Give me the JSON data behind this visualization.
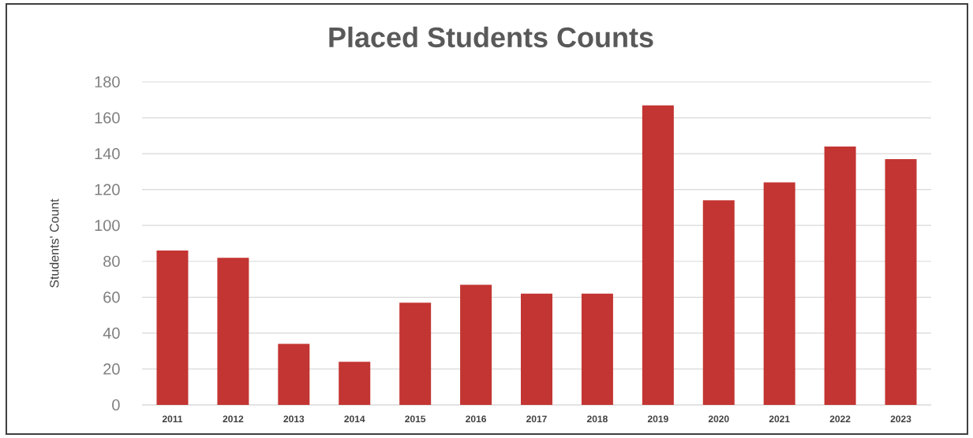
{
  "chart_data": {
    "type": "bar",
    "title": "Placed Students Counts",
    "ylabel": "Students' Count",
    "categories": [
      "2011",
      "2012",
      "2013",
      "2014",
      "2015",
      "2016",
      "2017",
      "2018",
      "2019",
      "2020",
      "2021",
      "2022",
      "2023"
    ],
    "values": [
      86,
      82,
      34,
      24,
      57,
      67,
      62,
      62,
      167,
      114,
      124,
      144,
      137
    ],
    "color": "#c33532",
    "ylim": [
      0,
      180
    ],
    "yticks": [
      0,
      20,
      40,
      60,
      80,
      100,
      120,
      140,
      160,
      180
    ],
    "grid": "y"
  }
}
